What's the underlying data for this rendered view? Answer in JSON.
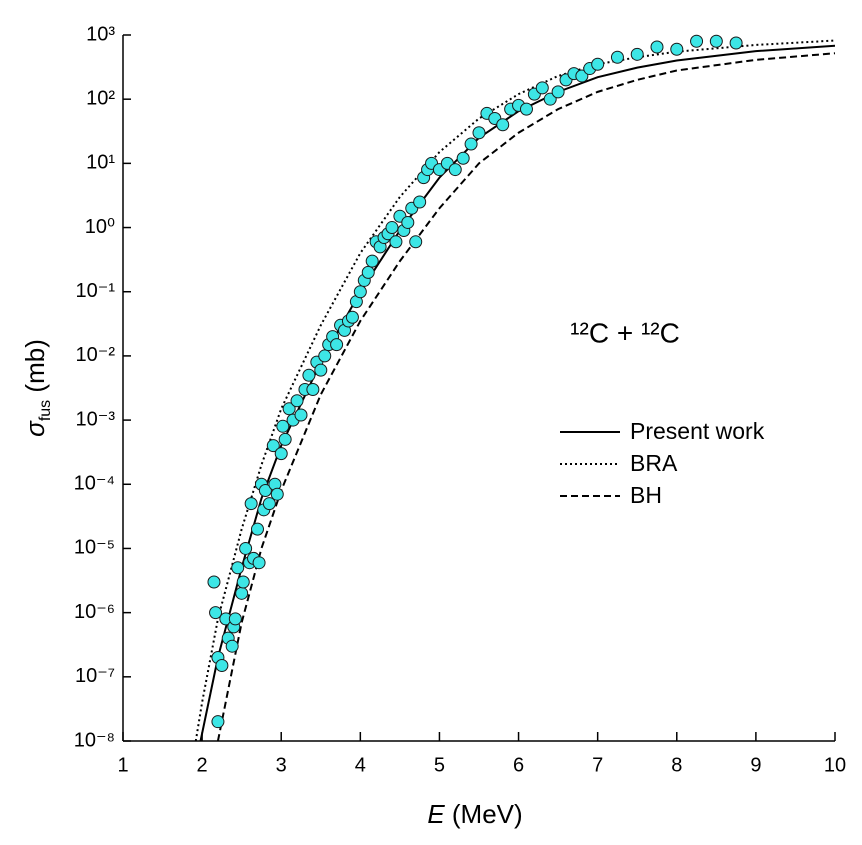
{
  "chart_data": {
    "type": "scatter",
    "x_label": {
      "symbol": "E",
      "unit": "(MeV)"
    },
    "y_label": {
      "symbol": "σ",
      "subscript": "fus",
      "unit": "(mb)"
    },
    "annotation": "¹²C + ¹²C",
    "xlim": [
      1,
      10
    ],
    "xticks": [
      1,
      2,
      3,
      4,
      5,
      6,
      7,
      8,
      9,
      10
    ],
    "ylim": [
      1e-08,
      1000
    ],
    "ylog": true,
    "yticks": [
      {
        "value": 1e-08,
        "label": "10⁻⁸"
      },
      {
        "value": 1e-07,
        "label": "10⁻⁷"
      },
      {
        "value": 1e-06,
        "label": "10⁻⁶"
      },
      {
        "value": 1e-05,
        "label": "10⁻⁵"
      },
      {
        "value": 0.0001,
        "label": "10⁻⁴"
      },
      {
        "value": 0.001,
        "label": "10⁻³"
      },
      {
        "value": 0.01,
        "label": "10⁻²"
      },
      {
        "value": 0.1,
        "label": "10⁻¹"
      },
      {
        "value": 1,
        "label": "10⁰"
      },
      {
        "value": 10,
        "label": "10¹"
      },
      {
        "value": 100,
        "label": "10²"
      },
      {
        "value": 1000,
        "label": "10³"
      }
    ],
    "legend": "right",
    "series": [
      {
        "type": "scatter",
        "color": "#3de6e6",
        "x": [
          2.15,
          2.17,
          2.2,
          2.2,
          2.25,
          2.3,
          2.33,
          2.38,
          2.4,
          2.42,
          2.45,
          2.5,
          2.52,
          2.55,
          2.6,
          2.62,
          2.65,
          2.7,
          2.72,
          2.75,
          2.78,
          2.8,
          2.85,
          2.9,
          2.92,
          2.95,
          3.0,
          3.02,
          3.05,
          3.1,
          3.15,
          3.2,
          3.25,
          3.3,
          3.35,
          3.4,
          3.45,
          3.5,
          3.55,
          3.6,
          3.65,
          3.7,
          3.75,
          3.8,
          3.85,
          3.9,
          3.95,
          4.0,
          4.05,
          4.1,
          4.15,
          4.2,
          4.25,
          4.3,
          4.35,
          4.4,
          4.45,
          4.5,
          4.55,
          4.6,
          4.65,
          4.7,
          4.75,
          4.8,
          4.85,
          4.9,
          5.0,
          5.1,
          5.2,
          5.3,
          5.4,
          5.5,
          5.6,
          5.7,
          5.8,
          5.9,
          6.0,
          6.1,
          6.2,
          6.3,
          6.4,
          6.5,
          6.6,
          6.7,
          6.8,
          6.9,
          7.0,
          7.25,
          7.5,
          7.75,
          8.0,
          8.25,
          8.5,
          8.75
        ],
        "values": [
          3e-06,
          1e-06,
          2e-07,
          2e-08,
          1.5e-07,
          8e-07,
          4e-07,
          3e-07,
          6e-07,
          8e-07,
          5e-06,
          2e-06,
          3e-06,
          1e-05,
          6e-06,
          5e-05,
          7e-06,
          2e-05,
          6e-06,
          0.0001,
          4e-05,
          8e-05,
          5e-05,
          0.0004,
          0.0001,
          7e-05,
          0.0003,
          0.0008,
          0.0005,
          0.0015,
          0.001,
          0.002,
          0.0012,
          0.003,
          0.005,
          0.003,
          0.008,
          0.006,
          0.01,
          0.015,
          0.02,
          0.015,
          0.03,
          0.025,
          0.035,
          0.04,
          0.07,
          0.1,
          0.15,
          0.2,
          0.3,
          0.6,
          0.5,
          0.7,
          0.8,
          1.0,
          0.6,
          1.5,
          0.9,
          1.2,
          2,
          0.6,
          2.5,
          6,
          8,
          10,
          8,
          10,
          8,
          12,
          20,
          30,
          60,
          50,
          40,
          70,
          80,
          70,
          120,
          150,
          100,
          130,
          200,
          250,
          230,
          300,
          350,
          450,
          500,
          650,
          600,
          800,
          800,
          750
        ]
      },
      {
        "type": "line",
        "name": "Present work",
        "color": "#000000",
        "style": "solid",
        "x": [
          1.98,
          2.2,
          2.5,
          2.75,
          3.0,
          3.5,
          4.0,
          4.5,
          5.0,
          5.5,
          6.0,
          6.5,
          7.0,
          7.5,
          8.0,
          9.0,
          10.0
        ],
        "values": [
          1e-08,
          2e-07,
          5e-06,
          6e-05,
          0.0004,
          0.008,
          0.1,
          0.9,
          6,
          25,
          65,
          130,
          220,
          310,
          400,
          560,
          680
        ]
      },
      {
        "type": "line",
        "name": "BRA",
        "color": "#000000",
        "style": "dotted",
        "x": [
          1.92,
          2.0,
          2.2,
          2.5,
          2.75,
          3.0,
          3.5,
          4.0,
          4.5,
          5.0,
          5.5,
          6.0,
          6.5,
          7.0,
          7.5,
          8.0,
          9.0,
          10.0
        ],
        "values": [
          1e-08,
          4e-08,
          8e-07,
          2e-05,
          0.0002,
          0.0015,
          0.03,
          0.4,
          3,
          15,
          50,
          120,
          230,
          350,
          450,
          550,
          700,
          820
        ]
      },
      {
        "type": "line",
        "name": "BH",
        "color": "#000000",
        "style": "dashed",
        "x": [
          2.2,
          2.5,
          2.75,
          3.0,
          3.5,
          4.0,
          4.5,
          5.0,
          5.5,
          6.0,
          6.5,
          7.0,
          7.5,
          8.0,
          9.0,
          10.0
        ],
        "values": [
          1e-08,
          7e-07,
          1e-05,
          8e-05,
          0.0025,
          0.035,
          0.3,
          2,
          10,
          30,
          70,
          130,
          200,
          280,
          410,
          520
        ]
      }
    ]
  }
}
